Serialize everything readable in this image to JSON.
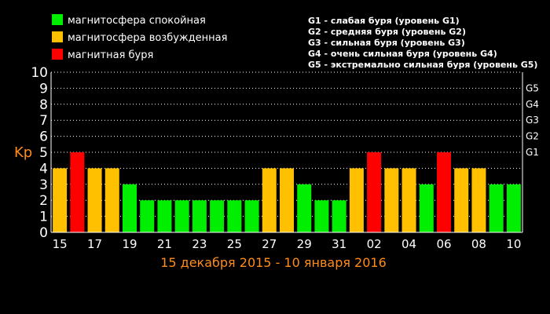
{
  "legend": [
    {
      "label": "магнитосфера спокойная",
      "color": "#00ee00"
    },
    {
      "label": "магнитосфера возбужденная",
      "color": "#ffc000"
    },
    {
      "label": "магнитная буря",
      "color": "#ff0000"
    }
  ],
  "storm_levels": [
    "G1 - слабая буря (уровень G1)",
    "G2 - средняя буря (уровень G2)",
    "G3 - сильная буря (уровень G3)",
    "G4 - очень сильная буря (уровень G4)",
    "G5 - экстремально сильная буря (уровень G5)"
  ],
  "chart_data": {
    "type": "bar",
    "ylabel": "Kp",
    "xlabel": "15 декабря 2015 - 10 января 2016",
    "ylim": [
      0,
      10
    ],
    "yticks": [
      "0",
      "1",
      "2",
      "3",
      "4",
      "5",
      "6",
      "7",
      "8",
      "9",
      "10"
    ],
    "right_axis": [
      {
        "label": "G1",
        "value": 5
      },
      {
        "label": "G2",
        "value": 6
      },
      {
        "label": "G3",
        "value": 7
      },
      {
        "label": "G4",
        "value": 8
      },
      {
        "label": "G5",
        "value": 9
      }
    ],
    "grid": "dotted horizontal",
    "x_tick_labels": [
      "15",
      "17",
      "19",
      "21",
      "23",
      "25",
      "27",
      "29",
      "31",
      "02",
      "04",
      "06",
      "08",
      "10"
    ],
    "categories": [
      "15",
      "16",
      "17",
      "18",
      "19",
      "20",
      "21",
      "22",
      "23",
      "24",
      "25",
      "26",
      "27",
      "28",
      "29",
      "30",
      "31",
      "01",
      "02",
      "03",
      "04",
      "05",
      "06",
      "07",
      "08",
      "09",
      "10"
    ],
    "values": [
      4,
      5,
      4,
      4,
      3,
      2,
      2,
      2,
      2,
      2,
      2,
      2,
      4,
      4,
      3,
      2,
      2,
      4,
      5,
      4,
      4,
      3,
      5,
      4,
      4,
      3,
      3
    ],
    "colors": {
      "quiet": "#00ee00",
      "active": "#ffc000",
      "storm": "#ff0000"
    }
  }
}
